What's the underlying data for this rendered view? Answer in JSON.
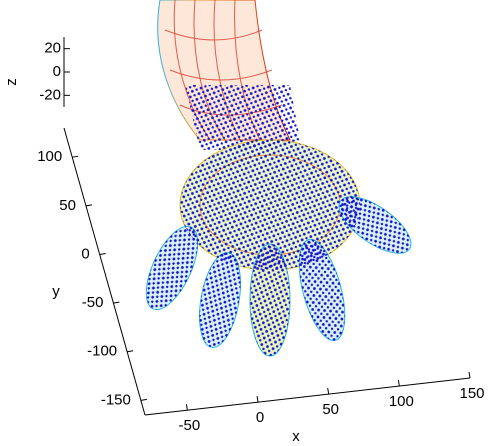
{
  "chart_data": {
    "type": "scatter3d",
    "xlabel": "x",
    "ylabel": "y",
    "zlabel": "z",
    "xlim": [
      -80,
      150
    ],
    "xticks": [
      -50,
      0,
      50,
      100,
      150
    ],
    "ylim": [
      -165,
      130
    ],
    "yticks": [
      -150,
      -100,
      -50,
      0,
      50,
      100
    ],
    "zlim": [
      -30,
      30
    ],
    "zticks": [
      -20,
      0,
      20
    ]
  }
}
